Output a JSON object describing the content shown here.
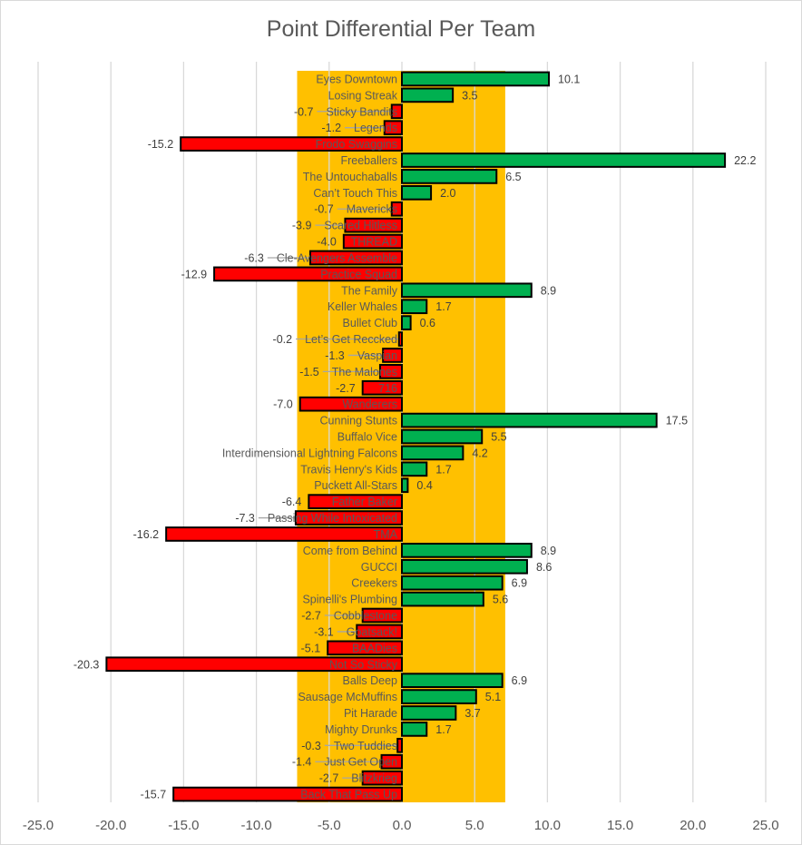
{
  "chart_data": {
    "type": "bar",
    "orientation": "horizontal",
    "title": "Point Differential Per Team",
    "xlabel": "",
    "ylabel": "",
    "xlim": [
      -25,
      25
    ],
    "x_ticks": [
      -25,
      -20,
      -15,
      -10,
      -5,
      0,
      5,
      10,
      15,
      20,
      25
    ],
    "x_tick_labels": [
      "-25.0",
      "-20.0",
      "-15.0",
      "-10.0",
      "-5.0",
      "0.0",
      "5.0",
      "10.0",
      "15.0",
      "20.0",
      "25.0"
    ],
    "grid": "vertical",
    "legend": "none",
    "highlight_band": {
      "from": -7.2,
      "to": 7.1,
      "color": "#FFC000"
    },
    "colors": {
      "positive": "#00B050",
      "negative": "#FF0000",
      "outline": "#000000",
      "grid": "#d9d9d9",
      "text": "#595959"
    },
    "categories": [
      "Eyes Downtown",
      "Losing Streak",
      "Sticky Bandits",
      "Legends",
      "Frodo Swaggins",
      "Freeballers",
      "The Untouchaballs",
      "Can’t Touch This",
      "Mavericks",
      "Scared Hitless",
      "THREAD",
      "Cle-Avengers Assemble",
      "Practice Squad",
      "The Family",
      "Keller Whales",
      "Bullet Club",
      "Let’s Get Reccked",
      "Vaspian",
      "The Malones",
      "716",
      "Wanderers",
      "Cunning Stunts",
      "Buffalo Vice",
      "Interdimensional Lightning Falcons",
      "Travis Henry's Kids",
      "Puckett All-Stars",
      "Father Baker",
      "Passing While Intoxicated",
      "TMA",
      "Come from Behind",
      "GUCCI",
      "Creekers",
      "Spinelli's Plumbing",
      "Cobblestone",
      "Goatsack!",
      "BAADies",
      "Not So Sticky",
      "Balls Deep",
      "Sausage McMuffins",
      "Pit Harade",
      "Mighty Drunks",
      "Two Tuddies",
      "Just Get Open",
      "Blitzkrieg",
      "Back That Pass Up"
    ],
    "values": [
      10.1,
      3.5,
      -0.7,
      -1.2,
      -15.2,
      22.2,
      6.5,
      2.0,
      -0.7,
      -3.9,
      -4.0,
      -6.3,
      -12.9,
      8.9,
      1.7,
      0.6,
      -0.2,
      -1.3,
      -1.5,
      -2.7,
      -7.0,
      17.5,
      5.5,
      4.2,
      1.7,
      0.4,
      -6.4,
      -7.3,
      -16.2,
      8.9,
      8.6,
      6.9,
      5.6,
      -2.7,
      -3.1,
      -5.1,
      -20.3,
      6.9,
      5.1,
      3.7,
      1.7,
      -0.3,
      -1.4,
      -2.7,
      -15.7
    ],
    "value_labels": [
      "10.1",
      "3.5",
      "-0.7",
      "-1.2",
      "-15.2",
      "22.2",
      "6.5",
      "2.0",
      "-0.7",
      "-3.9",
      "-4.0",
      "-6.3",
      "-12.9",
      "8.9",
      "1.7",
      "0.6",
      "-0.2",
      "-1.3",
      "-1.5",
      "-2.7",
      "-7.0",
      "17.5",
      "5.5",
      "4.2",
      "1.7",
      "0.4",
      "-6.4",
      "-7.3",
      "-16.2",
      "8.9",
      "8.6",
      "6.9",
      "5.6",
      "-2.7",
      "-3.1",
      "-5.1",
      "-20.3",
      "6.9",
      "5.1",
      "3.7",
      "1.7",
      "-0.3",
      "-1.4",
      "-2.7",
      "-15.7"
    ]
  }
}
